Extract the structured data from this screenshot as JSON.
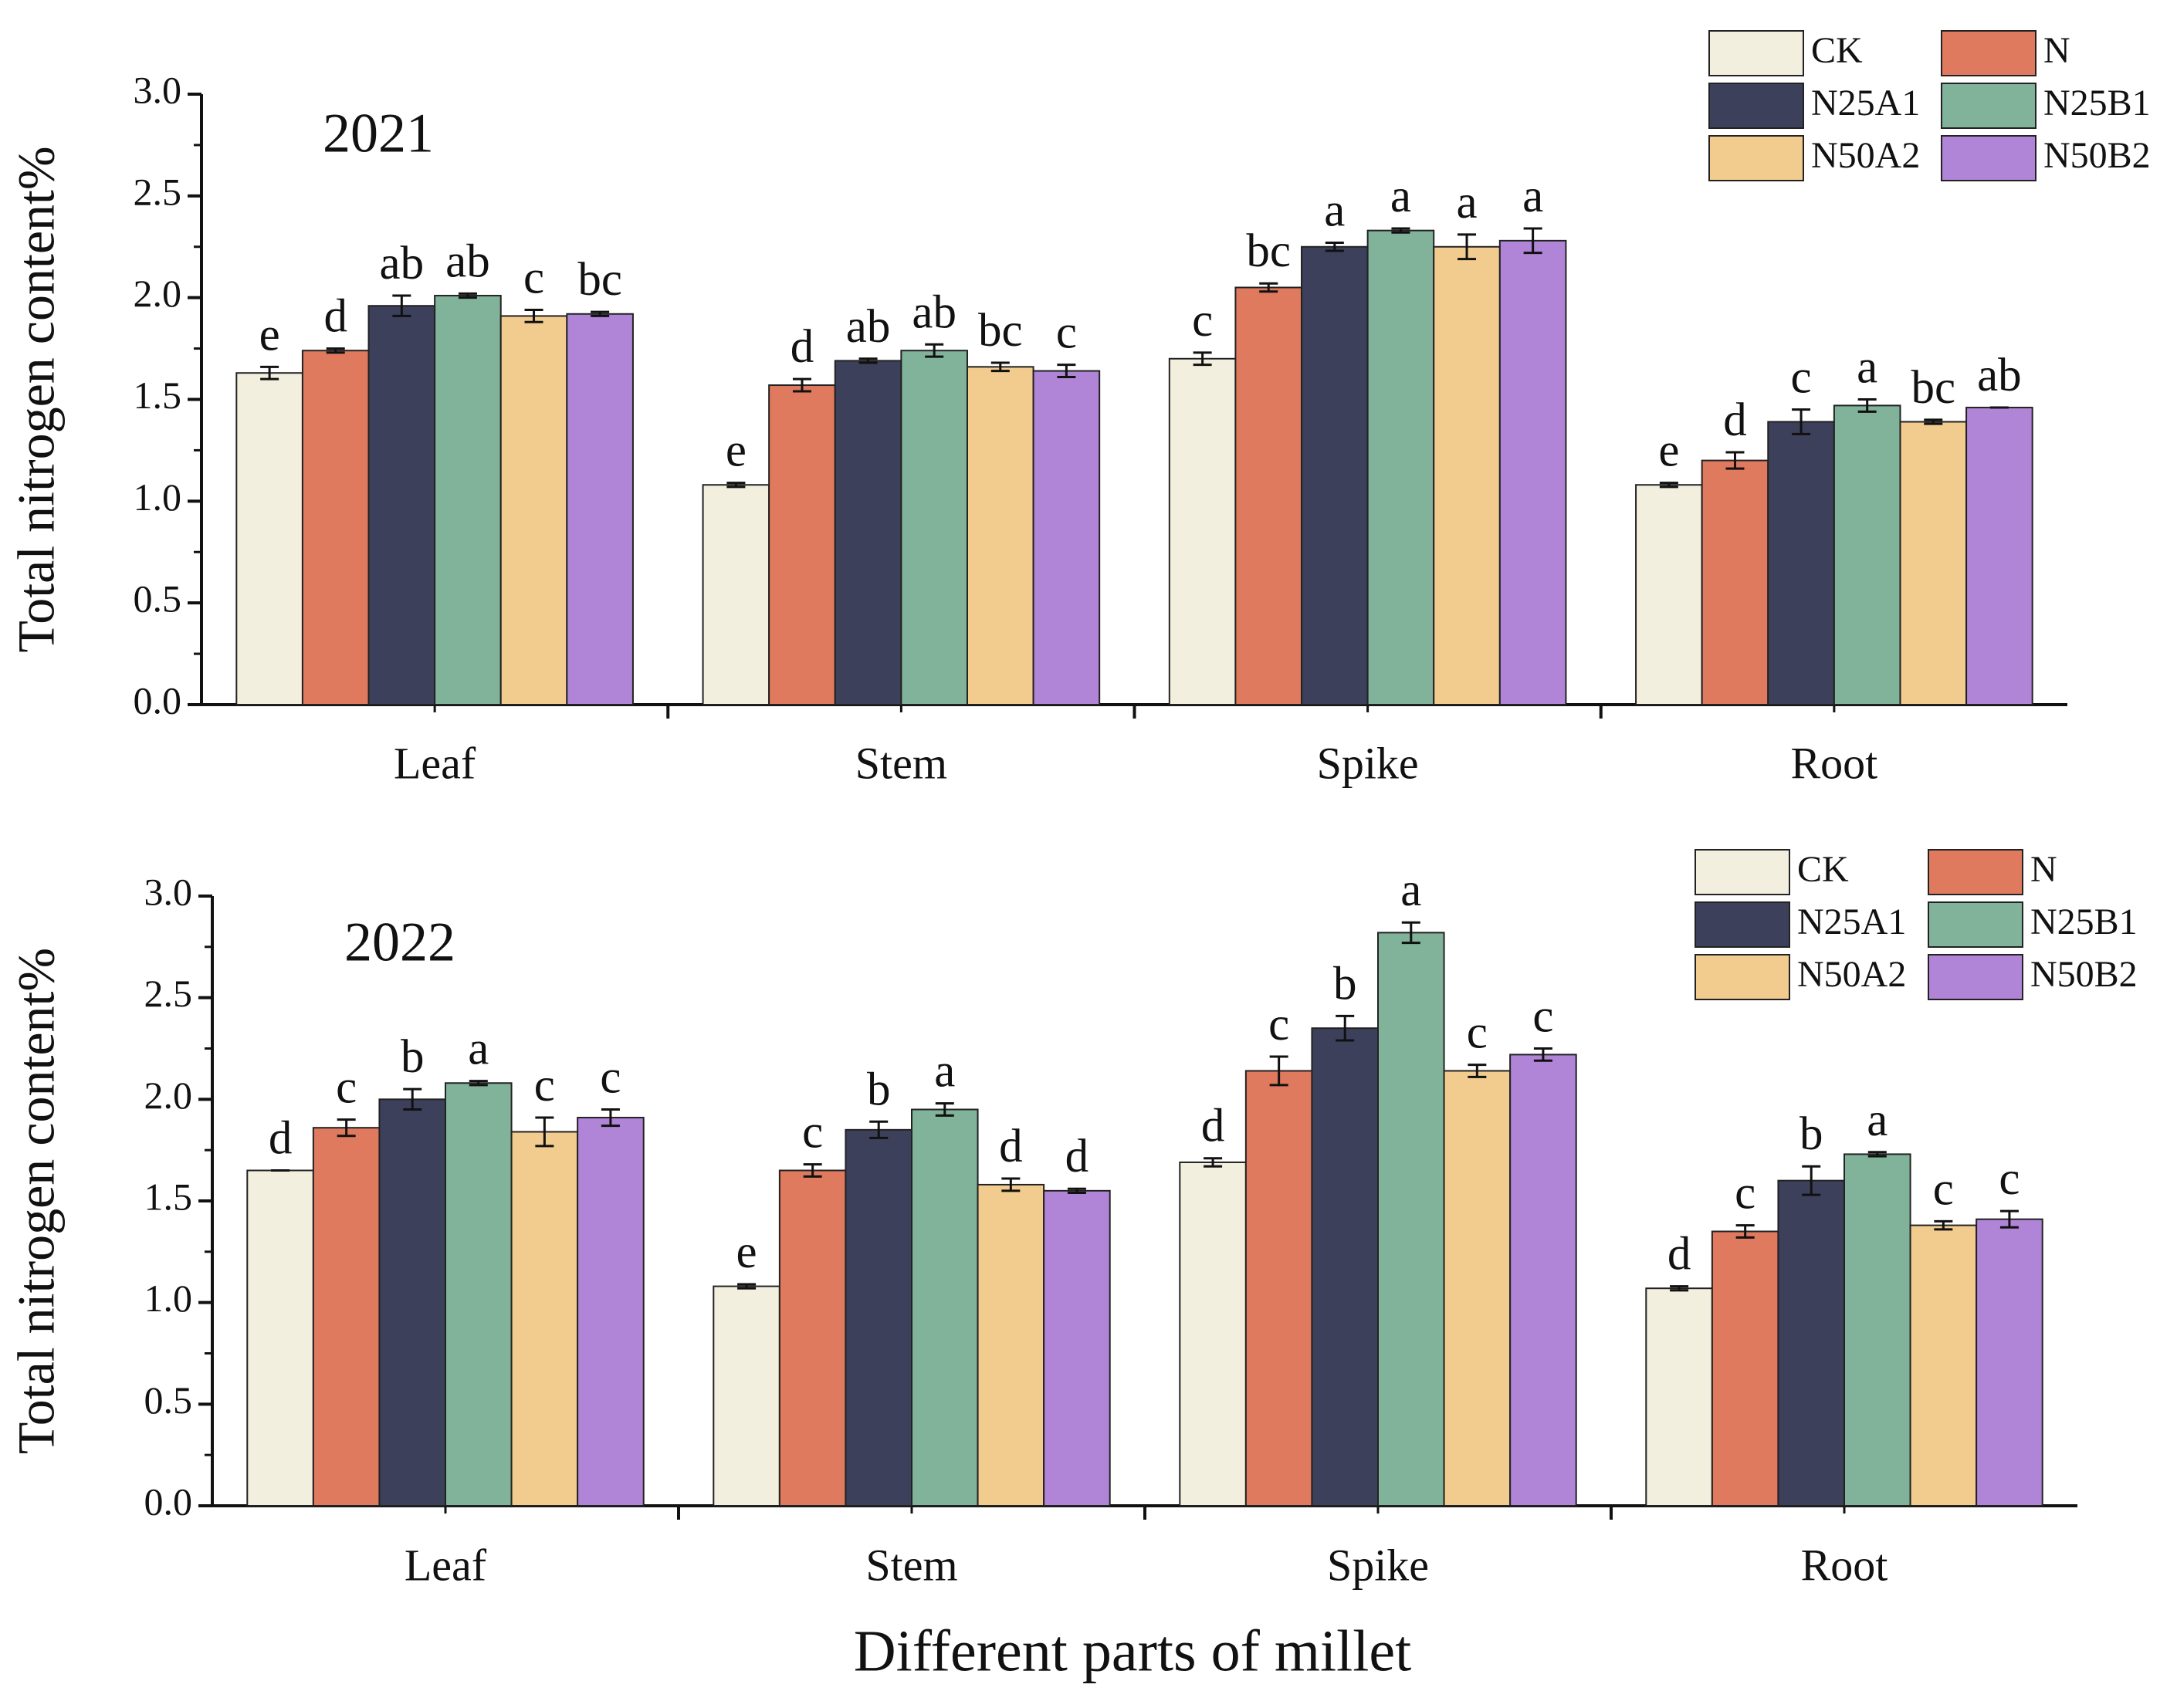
{
  "chart_data": [
    {
      "type": "bar",
      "title": "2021",
      "y_label": "Total nitrogen content%",
      "categories": [
        "Leaf",
        "Stem",
        "Spike",
        "Root"
      ],
      "ylim": [
        0,
        3
      ],
      "yticks": [
        {
          "value": 0,
          "label": "0.0"
        },
        0.5,
        {
          "value": 1,
          "label": "1.0"
        },
        1.5,
        {
          "value": 2,
          "label": "2.0"
        },
        2.5,
        {
          "value": 3,
          "label": "3.0"
        }
      ],
      "legend": "upper right",
      "series": [
        {
          "name": "CK",
          "color": "#f3efdf",
          "values": [
            1.63,
            1.08,
            1.7,
            1.08
          ],
          "errors": [
            0.03,
            0.01,
            0.03,
            0.01
          ],
          "letters": [
            "e",
            "e",
            "c",
            "e"
          ]
        },
        {
          "name": "N",
          "color": "#e07a5f",
          "values": [
            1.74,
            1.57,
            2.05,
            1.2
          ],
          "errors": [
            0.01,
            0.03,
            0.02,
            0.04
          ],
          "letters": [
            "d",
            "d",
            "bc",
            "d"
          ]
        },
        {
          "name": "N25A1",
          "color": "#3d405b",
          "values": [
            1.96,
            1.69,
            2.25,
            1.39
          ],
          "errors": [
            0.05,
            0.01,
            0.02,
            0.06
          ],
          "letters": [
            "ab",
            "ab",
            "a",
            "c"
          ]
        },
        {
          "name": "N25B1",
          "color": "#81b29a",
          "values": [
            2.01,
            1.74,
            2.33,
            1.47
          ],
          "errors": [
            0.01,
            0.03,
            0.01,
            0.03
          ],
          "letters": [
            "ab",
            "ab",
            "a",
            "a"
          ]
        },
        {
          "name": "N50A2",
          "color": "#f2cc8f",
          "values": [
            1.91,
            1.66,
            2.25,
            1.39
          ],
          "errors": [
            0.03,
            0.02,
            0.06,
            0.01
          ],
          "letters": [
            "c",
            "bc",
            "a",
            "bc"
          ]
        },
        {
          "name": "N50B2",
          "color": "#b084d6",
          "values": [
            1.92,
            1.64,
            2.28,
            1.46
          ],
          "errors": [
            0.01,
            0.03,
            0.06,
            0
          ],
          "letters": [
            "bc",
            "c",
            "a",
            "ab"
          ]
        }
      ]
    },
    {
      "type": "bar",
      "title": "2022",
      "y_label": "Total nitrogen content%",
      "x_label": "Different parts of millet",
      "categories": [
        "Leaf",
        "Stem",
        "Spike",
        "Root"
      ],
      "ylim": [
        0,
        3
      ],
      "yticks": [
        {
          "value": 0,
          "label": "0.0"
        },
        0.5,
        {
          "value": 1,
          "label": "1.0"
        },
        1.5,
        {
          "value": 2,
          "label": "2.0"
        },
        2.5,
        {
          "value": 3,
          "label": "3.0"
        }
      ],
      "legend": "upper right",
      "series": [
        {
          "name": "CK",
          "color": "#f3efdf",
          "values": [
            1.65,
            1.08,
            1.69,
            1.07
          ],
          "errors": [
            0,
            0.01,
            0.02,
            0.01
          ],
          "letters": [
            "d",
            "e",
            "d",
            "d"
          ]
        },
        {
          "name": "N",
          "color": "#e07a5f",
          "values": [
            1.86,
            1.65,
            2.14,
            1.35
          ],
          "errors": [
            0.04,
            0.03,
            0.07,
            0.03
          ],
          "letters": [
            "c",
            "c",
            "c",
            "c"
          ]
        },
        {
          "name": "N25A1",
          "color": "#3d405b",
          "values": [
            2.0,
            1.85,
            2.35,
            1.6
          ],
          "errors": [
            0.05,
            0.04,
            0.06,
            0.07
          ],
          "letters": [
            "b",
            "b",
            "b",
            "b"
          ]
        },
        {
          "name": "N25B1",
          "color": "#81b29a",
          "values": [
            2.08,
            1.95,
            2.82,
            1.73
          ],
          "errors": [
            0.01,
            0.03,
            0.05,
            0.01
          ],
          "letters": [
            "a",
            "a",
            "a",
            "a"
          ]
        },
        {
          "name": "N50A2",
          "color": "#f2cc8f",
          "values": [
            1.84,
            1.58,
            2.14,
            1.38
          ],
          "errors": [
            0.07,
            0.03,
            0.03,
            0.02
          ],
          "letters": [
            "c",
            "d",
            "c",
            "c"
          ]
        },
        {
          "name": "N50B2",
          "color": "#b084d6",
          "values": [
            1.91,
            1.55,
            2.22,
            1.41
          ],
          "errors": [
            0.04,
            0.01,
            0.03,
            0.04
          ],
          "letters": [
            "c",
            "d",
            "c",
            "c"
          ]
        }
      ]
    }
  ]
}
